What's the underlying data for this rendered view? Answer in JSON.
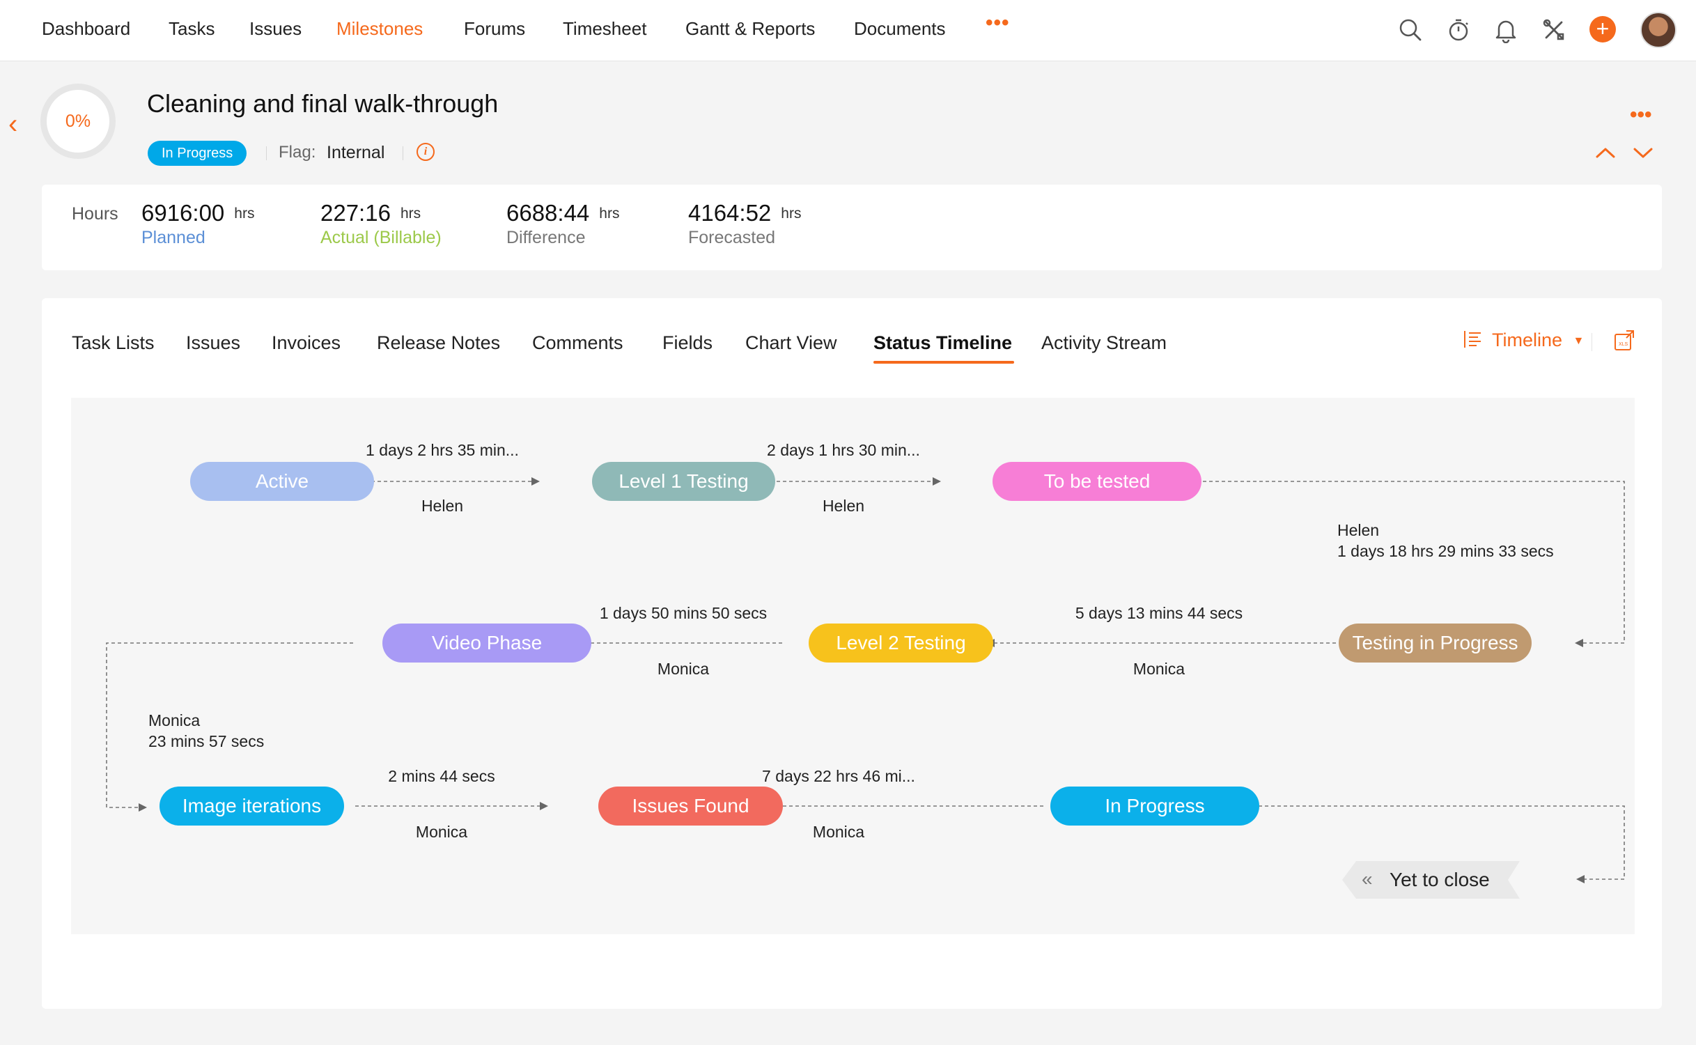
{
  "nav": {
    "items": [
      "Dashboard",
      "Tasks",
      "Issues",
      "Milestones",
      "Forums",
      "Timesheet",
      "Gantt & Reports",
      "Documents"
    ],
    "more": "•••",
    "plus": "+"
  },
  "milestone": {
    "percent": "0%",
    "progress_fraction": 0,
    "title": "Cleaning and final walk-through",
    "status": "In Progress",
    "flag_label": "Flag:",
    "flag_value": "Internal",
    "more": "•••"
  },
  "hours": {
    "label": "Hours",
    "unit": "hrs",
    "planned": {
      "value": "6916:00",
      "label": "Planned",
      "color": "#5b8fd6"
    },
    "actual": {
      "value": "227:16",
      "label": "Actual (Billable)",
      "color": "#9cc94a"
    },
    "difference": {
      "value": "6688:44",
      "label": "Difference",
      "color": "#777777"
    },
    "forecasted": {
      "value": "4164:52",
      "label": "Forecasted",
      "color": "#777777"
    }
  },
  "tabs": [
    "Task Lists",
    "Issues",
    "Invoices",
    "Release Notes",
    "Comments",
    "Fields",
    "Chart View",
    "Status Timeline",
    "Activity Stream"
  ],
  "active_tab": "Status Timeline",
  "view_switch": {
    "label": "Timeline"
  },
  "timeline": {
    "nodes": {
      "active": {
        "label": "Active",
        "color": "#a8bff0"
      },
      "level1": {
        "label": "Level 1 Testing",
        "color": "#8fb9b7"
      },
      "to_be_tested": {
        "label": "To be tested",
        "color": "#f77ed6"
      },
      "testing_in_progress": {
        "label": "Testing in Progress",
        "color": "#c09a70"
      },
      "level2": {
        "label": "Level 2 Testing",
        "color": "#f7c21c"
      },
      "video_phase": {
        "label": "Video Phase",
        "color": "#a89af5"
      },
      "image_iterations": {
        "label": "Image iterations",
        "color": "#0bb0ea"
      },
      "issues_found": {
        "label": "Issues Found",
        "color": "#f26a5e"
      },
      "in_progress": {
        "label": "In Progress",
        "color": "#0bb0ea"
      },
      "yet_to_close": {
        "label": "Yet to close"
      }
    },
    "transitions": {
      "t1": {
        "duration": "1 days 2 hrs 35 min...",
        "user": "Helen"
      },
      "t2": {
        "duration": "2 days 1 hrs 30 min...",
        "user": "Helen"
      },
      "t3": {
        "duration": "1 days 18 hrs 29 mins 33 secs",
        "user": "Helen"
      },
      "t4": {
        "duration": "5 days 13 mins 44 secs",
        "user": "Monica"
      },
      "t5": {
        "duration": "1 days 50 mins 50 secs",
        "user": "Monica"
      },
      "t6": {
        "duration": "23 mins 57 secs",
        "user": "Monica"
      },
      "t7": {
        "duration": "2 mins 44 secs",
        "user": "Monica"
      },
      "t8": {
        "duration": "7 days 22 hrs 46 mi...",
        "user": "Monica"
      }
    }
  },
  "icons": {
    "search": "search-icon",
    "timer": "timer-icon",
    "bell": "bell-icon",
    "settings": "settings-tools-icon",
    "export": "export-xls-icon"
  },
  "colors": {
    "accent": "#f5691c"
  }
}
